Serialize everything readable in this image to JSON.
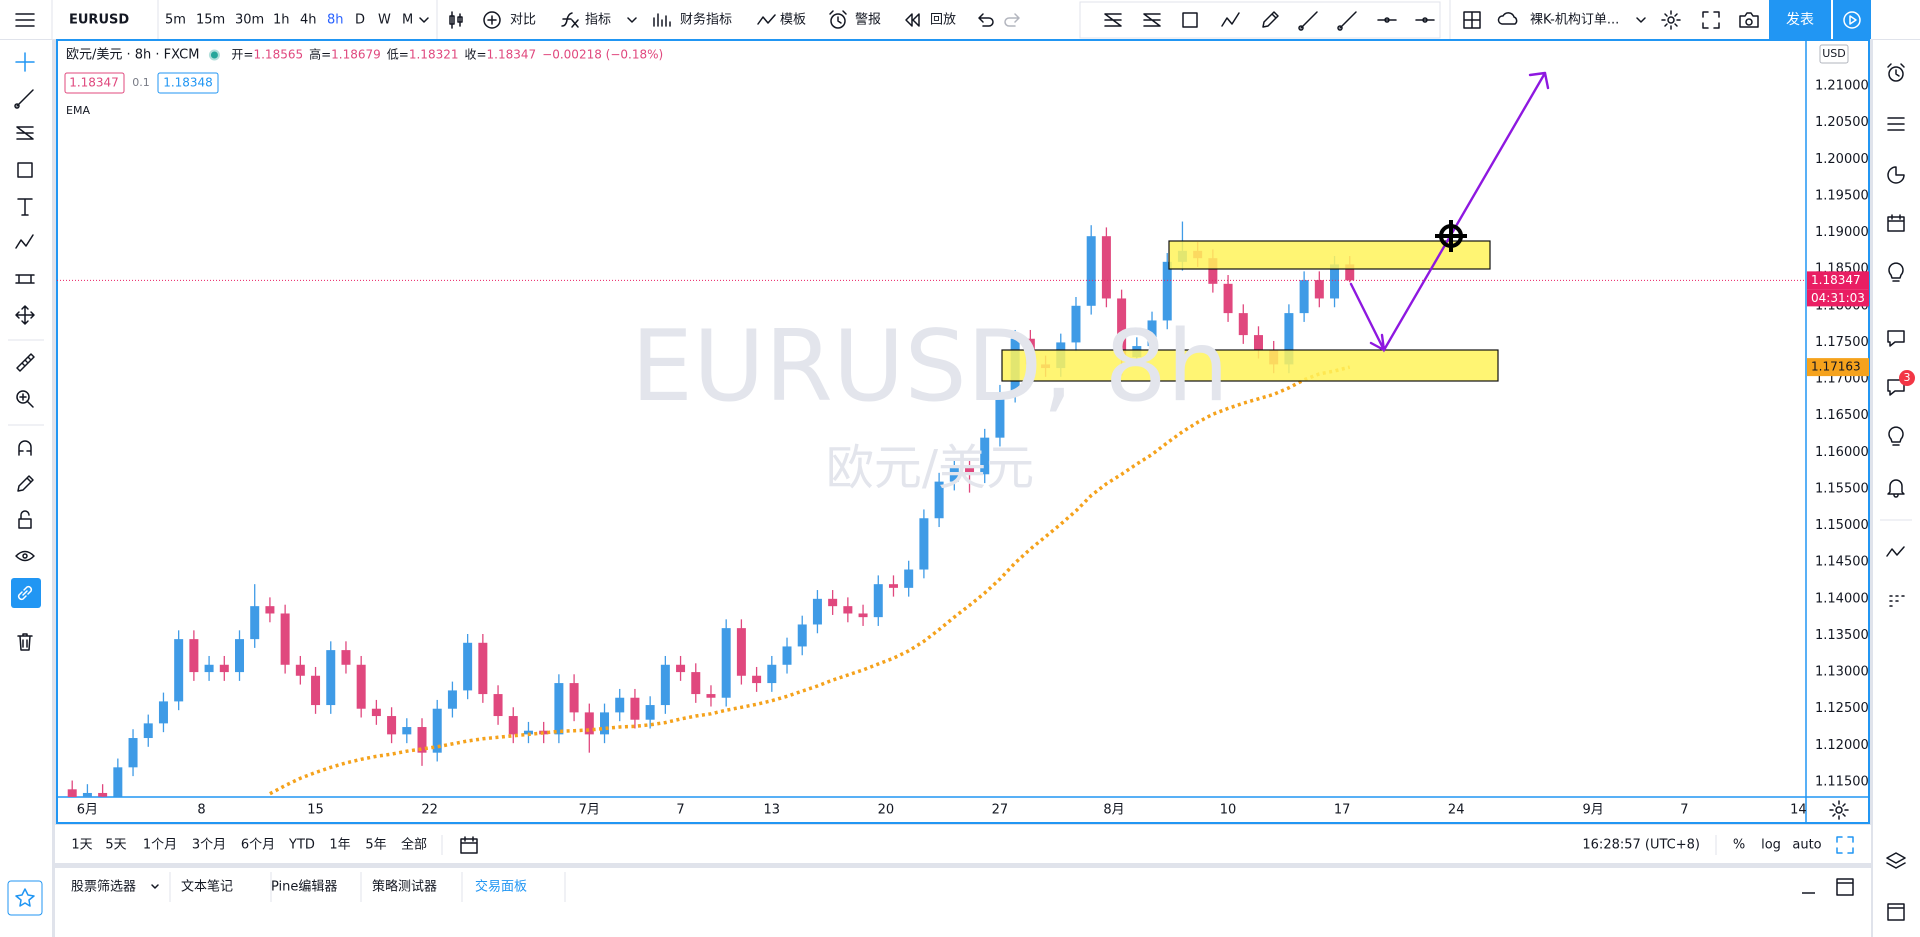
{
  "toolbar": {
    "intervals": [
      "5m",
      "15m",
      "30m",
      "1h",
      "4h",
      "8h",
      "D",
      "W",
      "M"
    ],
    "active_interval": "8h",
    "buttons": [
      "对比",
      "指标",
      "财务指标",
      "模板",
      "警报",
      "回放"
    ],
    "layout_name": "裸K-机构订单...",
    "publish": "发表"
  },
  "legend": {
    "symbol": "欧元/美元 · 8h · FXCM",
    "ohlc": [
      {
        "label": "开=",
        "value": 1.18565
      },
      {
        "label": "高=",
        "value": 1.18679
      },
      {
        "label": "低=",
        "value": 1.18321
      },
      {
        "label": "收=",
        "value": 1.18347
      }
    ],
    "change": "−0.00218 (−0.18%)",
    "sell": 1.18347,
    "spread": 0.1,
    "buy": 1.18348
  },
  "watermark": {
    "symbol": "EURUSD, 8h",
    "description": "欧元/美元"
  },
  "chart_data": {
    "type": "candlestick",
    "x": [
      0,
      2,
      4,
      6,
      8,
      10,
      12,
      14,
      16,
      18,
      20,
      22,
      24,
      26,
      28,
      30,
      32,
      34,
      36,
      38,
      40,
      42,
      44,
      46,
      48,
      50,
      52,
      54,
      56,
      58,
      60,
      62,
      64,
      66,
      68,
      70,
      72,
      74,
      76,
      78,
      80,
      82,
      84,
      86,
      88,
      90,
      92,
      94,
      96,
      98,
      100,
      102,
      104,
      106,
      108,
      110,
      112,
      114,
      116,
      118,
      120,
      122,
      124,
      126,
      128,
      130,
      132,
      134,
      136,
      138,
      140,
      142,
      144,
      146,
      148,
      150,
      152,
      154,
      156,
      158,
      160,
      162,
      164,
      166,
      168
    ],
    "series": [
      {
        "name": "EURUSD",
        "up_color": "#3f9be6",
        "down_color": "#e0487e",
        "open": [
          1.114,
          1.1125,
          1.1135,
          1.113,
          1.117,
          1.121,
          1.123,
          1.126,
          1.1345,
          1.13,
          1.131,
          1.13,
          1.1345,
          1.139,
          1.138,
          1.131,
          1.1295,
          1.1255,
          1.133,
          1.131,
          1.125,
          1.124,
          1.1215,
          1.1225,
          1.119,
          1.125,
          1.1275,
          1.134,
          1.127,
          1.124,
          1.1215,
          1.122,
          1.1215,
          1.1285,
          1.1245,
          1.1215,
          1.1245,
          1.1265,
          1.1235,
          1.1255,
          1.131,
          1.13,
          1.127,
          1.1265,
          1.136,
          1.1295,
          1.1285,
          1.131,
          1.1335,
          1.1365,
          1.14,
          1.139,
          1.138,
          1.1375,
          1.142,
          1.1415,
          1.144,
          1.151,
          1.156,
          1.158,
          1.157,
          1.162,
          1.168,
          1.1755,
          1.172,
          1.1715,
          1.175,
          1.18,
          1.1895,
          1.181,
          1.173,
          1.1745,
          1.178,
          1.186,
          1.1875,
          1.1865,
          1.183,
          1.179,
          1.176,
          1.174,
          1.172,
          1.179,
          1.1835,
          1.181,
          1.18565
        ],
        "high": [
          1.1152,
          1.1147,
          1.1147,
          1.1182,
          1.1222,
          1.1242,
          1.1272,
          1.1357,
          1.1357,
          1.1322,
          1.1322,
          1.1357,
          1.142,
          1.1402,
          1.1392,
          1.1322,
          1.1307,
          1.1342,
          1.1342,
          1.1322,
          1.1262,
          1.1252,
          1.1237,
          1.1237,
          1.1262,
          1.1287,
          1.1352,
          1.1352,
          1.1282,
          1.1252,
          1.1232,
          1.1232,
          1.1297,
          1.1297,
          1.1257,
          1.1257,
          1.1277,
          1.1277,
          1.1267,
          1.1322,
          1.1322,
          1.1312,
          1.1282,
          1.1372,
          1.1372,
          1.1307,
          1.1322,
          1.1347,
          1.1377,
          1.1412,
          1.1412,
          1.1402,
          1.1392,
          1.1432,
          1.1432,
          1.1452,
          1.1522,
          1.1572,
          1.1592,
          1.1592,
          1.1632,
          1.1692,
          1.1767,
          1.1767,
          1.1732,
          1.1762,
          1.1812,
          1.191,
          1.1907,
          1.1822,
          1.1757,
          1.1792,
          1.1872,
          1.1915,
          1.1887,
          1.1877,
          1.1842,
          1.1802,
          1.1772,
          1.1752,
          1.1802,
          1.1847,
          1.1847,
          1.1868,
          1.18679
        ],
        "low": [
          1.1113,
          1.1113,
          1.1118,
          1.1118,
          1.1158,
          1.1198,
          1.1218,
          1.1248,
          1.1288,
          1.1288,
          1.1288,
          1.1288,
          1.1333,
          1.1368,
          1.1298,
          1.1283,
          1.1243,
          1.1243,
          1.1298,
          1.1238,
          1.1228,
          1.1203,
          1.1203,
          1.1172,
          1.1178,
          1.1238,
          1.1263,
          1.1258,
          1.1228,
          1.1203,
          1.1203,
          1.1203,
          1.1203,
          1.1233,
          1.119,
          1.1203,
          1.1233,
          1.1223,
          1.1223,
          1.1243,
          1.1288,
          1.1258,
          1.1253,
          1.1253,
          1.1283,
          1.1273,
          1.1273,
          1.1298,
          1.1323,
          1.1353,
          1.1378,
          1.1368,
          1.1363,
          1.1363,
          1.1403,
          1.1403,
          1.1428,
          1.1498,
          1.1548,
          1.1545,
          1.1558,
          1.1608,
          1.1668,
          1.1708,
          1.1703,
          1.1703,
          1.1738,
          1.1788,
          1.1798,
          1.1705,
          1.1718,
          1.1733,
          1.1768,
          1.1848,
          1.1853,
          1.1818,
          1.1778,
          1.1748,
          1.1728,
          1.1708,
          1.1708,
          1.1778,
          1.1798,
          1.1798,
          1.18321
        ],
        "close": [
          1.1125,
          1.1135,
          1.113,
          1.117,
          1.121,
          1.123,
          1.126,
          1.1345,
          1.13,
          1.131,
          1.13,
          1.1345,
          1.139,
          1.138,
          1.131,
          1.1295,
          1.1255,
          1.133,
          1.131,
          1.125,
          1.124,
          1.1215,
          1.1225,
          1.119,
          1.125,
          1.1275,
          1.134,
          1.127,
          1.124,
          1.1215,
          1.122,
          1.1215,
          1.1285,
          1.1245,
          1.1215,
          1.1245,
          1.1265,
          1.1235,
          1.1255,
          1.131,
          1.13,
          1.127,
          1.1265,
          1.136,
          1.1295,
          1.1285,
          1.131,
          1.1335,
          1.1365,
          1.14,
          1.139,
          1.138,
          1.1375,
          1.142,
          1.1415,
          1.144,
          1.151,
          1.156,
          1.158,
          1.157,
          1.162,
          1.168,
          1.1755,
          1.172,
          1.1715,
          1.175,
          1.18,
          1.1895,
          1.181,
          1.173,
          1.1745,
          1.178,
          1.186,
          1.1875,
          1.1865,
          1.183,
          1.179,
          1.176,
          1.174,
          1.172,
          1.179,
          1.1835,
          1.181,
          1.18565,
          1.18347
        ]
      },
      {
        "name": "EMA",
        "color": "#f5a21c",
        "values": [
          null,
          null,
          null,
          null,
          null,
          null,
          null,
          null,
          null,
          null,
          null,
          null,
          null,
          1.1134,
          1.1145,
          1.1155,
          1.1163,
          1.117,
          1.1176,
          1.1181,
          1.1185,
          1.1188,
          1.1192,
          1.1195,
          1.1198,
          1.1202,
          1.1206,
          1.1209,
          1.1211,
          1.1213,
          1.1215,
          1.1217,
          1.1219,
          1.122,
          1.1221,
          1.1223,
          1.1225,
          1.1226,
          1.1228,
          1.1231,
          1.1236,
          1.124,
          1.1243,
          1.1248,
          1.1252,
          1.1256,
          1.1261,
          1.1267,
          1.1274,
          1.1281,
          1.1289,
          1.1296,
          1.1303,
          1.1311,
          1.1319,
          1.1329,
          1.1342,
          1.1358,
          1.1375,
          1.1391,
          1.1408,
          1.1427,
          1.1449,
          1.1468,
          1.1485,
          1.1502,
          1.152,
          1.1541,
          1.1557,
          1.157,
          1.1584,
          1.1597,
          1.1613,
          1.1628,
          1.1641,
          1.1652,
          1.166,
          1.1667,
          1.1673,
          1.1679,
          1.1688,
          1.1699,
          1.1707,
          1.1711,
          1.17163
        ]
      }
    ],
    "xlim": [
      -2,
      228
    ],
    "xticks": [
      {
        "value": 2,
        "label": "6月"
      },
      {
        "value": 17,
        "label": "8"
      },
      {
        "value": 32,
        "label": "15"
      },
      {
        "value": 47,
        "label": "22"
      },
      {
        "value": 68,
        "label": "7月"
      },
      {
        "value": 80,
        "label": "7"
      },
      {
        "value": 92,
        "label": "13"
      },
      {
        "value": 107,
        "label": "20"
      },
      {
        "value": 122,
        "label": "27"
      },
      {
        "value": 137,
        "label": "8月"
      },
      {
        "value": 152,
        "label": "10"
      },
      {
        "value": 167,
        "label": "17"
      },
      {
        "value": 182,
        "label": "24"
      },
      {
        "value": 200,
        "label": "9月"
      },
      {
        "value": 212,
        "label": "7"
      },
      {
        "value": 227,
        "label": "14"
      }
    ],
    "ylim": [
      1.11295,
      1.21628
    ],
    "yticks": [
      {
        "value": 1.115,
        "label": "1.11500"
      },
      {
        "value": 1.12,
        "label": "1.12000"
      },
      {
        "value": 1.125,
        "label": "1.12500"
      },
      {
        "value": 1.13,
        "label": "1.13000"
      },
      {
        "value": 1.135,
        "label": "1.13500"
      },
      {
        "value": 1.14,
        "label": "1.14000"
      },
      {
        "value": 1.145,
        "label": "1.14500"
      },
      {
        "value": 1.15,
        "label": "1.15000"
      },
      {
        "value": 1.155,
        "label": "1.15500"
      },
      {
        "value": 1.16,
        "label": "1.16000"
      },
      {
        "value": 1.165,
        "label": "1.16500"
      },
      {
        "value": 1.17,
        "label": "1.17000"
      },
      {
        "value": 1.175,
        "label": "1.17500"
      },
      {
        "value": 1.18,
        "label": "1.18000"
      },
      {
        "value": 1.185,
        "label": "1.18500"
      },
      {
        "value": 1.19,
        "label": "1.19000"
      },
      {
        "value": 1.195,
        "label": "1.19500"
      },
      {
        "value": 1.2,
        "label": "1.20000"
      },
      {
        "value": 1.205,
        "label": "1.20500"
      },
      {
        "value": 1.21,
        "label": "1.21000"
      }
    ],
    "grid": false,
    "axis_currency": "USD",
    "last_price": 1.18347,
    "last_price_color": "#e91e63",
    "countdown": "04:31:03",
    "ema_last": 1.17163
  },
  "bottom_bar": {
    "ranges": [
      "1天",
      "5天",
      "1个月",
      "3个月",
      "6个月",
      "YTD",
      "1年",
      "5年",
      "全部"
    ],
    "clock": "16:28:57 (UTC+8)",
    "scale_options": [
      "%",
      "log",
      "auto"
    ]
  },
  "tabs": {
    "items": [
      "股票筛选器",
      "文本笔记",
      "Pine编辑器",
      "策略测试器",
      "交易面板"
    ],
    "active": "交易面板"
  },
  "notifications": {
    "badge": 3
  }
}
